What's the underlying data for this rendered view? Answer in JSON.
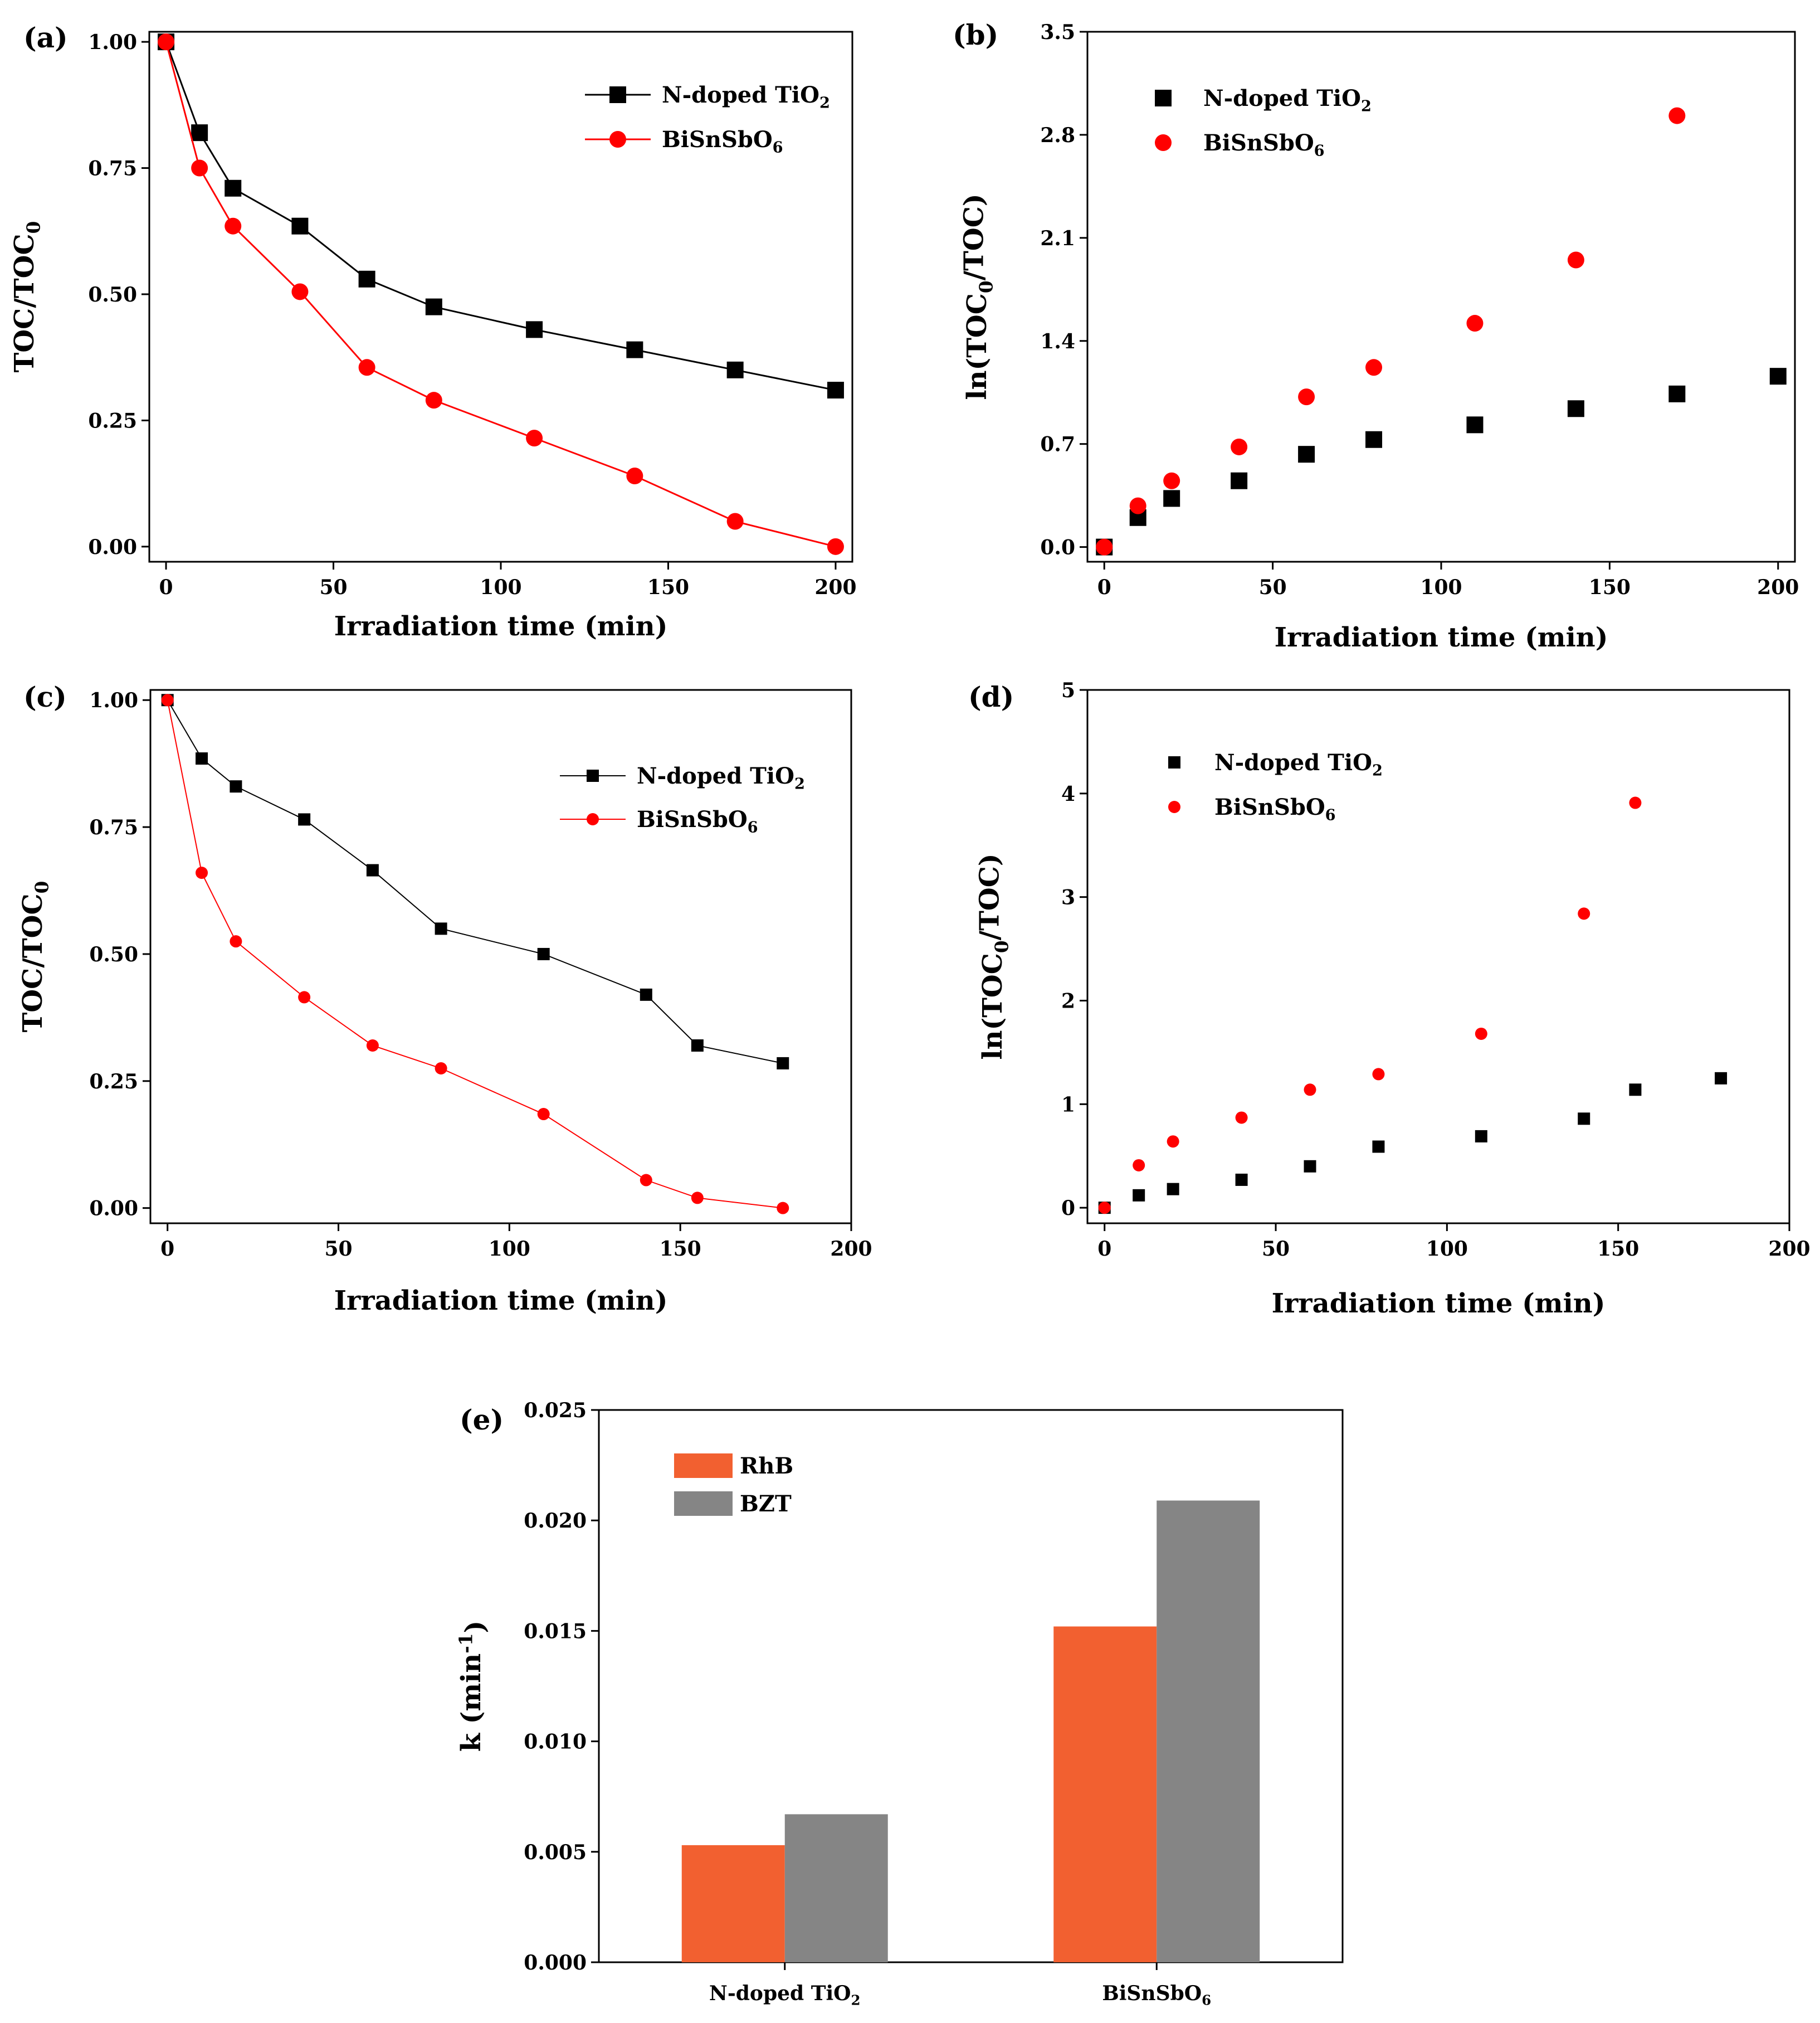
{
  "chart_data": [
    {
      "panel": "(a)",
      "type": "line",
      "xlabel": "Irradiation time (min)",
      "ylabel": "TOC/TOC0",
      "xlim": [
        -5,
        205
      ],
      "ylim": [
        -0.03,
        1.02
      ],
      "xticks": [
        0,
        50,
        100,
        150,
        200
      ],
      "yticks": [
        "0.00",
        "0.25",
        "0.50",
        "0.75",
        "1.00"
      ],
      "legend_position": "top-right",
      "series": [
        {
          "name": "N-doped TiO2",
          "color": "#000000",
          "marker": "square",
          "x": [
            0,
            10,
            20,
            40,
            60,
            80,
            110,
            140,
            170,
            200
          ],
          "y": [
            1.0,
            0.82,
            0.71,
            0.635,
            0.53,
            0.475,
            0.43,
            0.39,
            0.35,
            0.31
          ]
        },
        {
          "name": "BiSnSbO6",
          "color": "#ff0000",
          "marker": "circle",
          "x": [
            0,
            10,
            20,
            40,
            60,
            80,
            110,
            140,
            170,
            200
          ],
          "y": [
            1.0,
            0.75,
            0.635,
            0.505,
            0.355,
            0.29,
            0.215,
            0.14,
            0.05,
            0.0
          ]
        }
      ]
    },
    {
      "panel": "(b)",
      "type": "scatter",
      "xlabel": "Irradiation time (min)",
      "ylabel": "ln(TOC0/TOC)",
      "xlim": [
        -5,
        205
      ],
      "ylim": [
        -0.1,
        3.5
      ],
      "xticks": [
        0,
        50,
        100,
        150,
        200
      ],
      "yticks": [
        "0.0",
        "0.7",
        "1.4",
        "2.1",
        "2.8",
        "3.5"
      ],
      "legend_position": "top-left",
      "series": [
        {
          "name": "N-doped TiO2",
          "color": "#000000",
          "marker": "square",
          "x": [
            0,
            10,
            20,
            40,
            60,
            80,
            110,
            140,
            170,
            200
          ],
          "y": [
            0.0,
            0.2,
            0.33,
            0.45,
            0.63,
            0.73,
            0.83,
            0.94,
            1.04,
            1.16
          ]
        },
        {
          "name": "BiSnSbO6",
          "color": "#ff0000",
          "marker": "circle",
          "x": [
            0,
            10,
            20,
            40,
            60,
            80,
            110,
            140,
            170
          ],
          "y": [
            0.0,
            0.28,
            0.45,
            0.68,
            1.02,
            1.22,
            1.52,
            1.95,
            2.93
          ]
        }
      ]
    },
    {
      "panel": "(c)",
      "type": "line",
      "xlabel": "Irradiation time (min)",
      "ylabel": "TOC/TOC0",
      "xlim": [
        -5,
        200
      ],
      "ylim": [
        -0.03,
        1.02
      ],
      "xticks": [
        0,
        50,
        100,
        150,
        200
      ],
      "yticks": [
        "0.00",
        "0.25",
        "0.50",
        "0.75",
        "1.00"
      ],
      "legend_position": "top-right",
      "series": [
        {
          "name": "N-doped TiO2",
          "color": "#000000",
          "marker": "square",
          "x": [
            0,
            10,
            20,
            40,
            60,
            80,
            110,
            140,
            155,
            180
          ],
          "y": [
            1.0,
            0.885,
            0.83,
            0.765,
            0.665,
            0.55,
            0.5,
            0.42,
            0.32,
            0.285
          ]
        },
        {
          "name": "BiSnSbO6",
          "color": "#ff0000",
          "marker": "circle",
          "x": [
            0,
            10,
            20,
            40,
            60,
            80,
            110,
            140,
            155,
            180
          ],
          "y": [
            1.0,
            0.66,
            0.525,
            0.415,
            0.32,
            0.275,
            0.185,
            0.055,
            0.02,
            0.0
          ]
        }
      ]
    },
    {
      "panel": "(d)",
      "type": "scatter",
      "xlabel": "Irradiation time (min)",
      "ylabel": "ln(TOC0/TOC)",
      "xlim": [
        -5,
        200
      ],
      "ylim": [
        -0.15,
        5
      ],
      "xticks": [
        0,
        50,
        100,
        150,
        200
      ],
      "yticks": [
        "0",
        "1",
        "2",
        "3",
        "4",
        "5"
      ],
      "legend_position": "top-left",
      "series": [
        {
          "name": "N-doped TiO2",
          "color": "#000000",
          "marker": "square",
          "x": [
            0,
            10,
            20,
            40,
            60,
            80,
            110,
            140,
            155,
            180
          ],
          "y": [
            0.0,
            0.12,
            0.18,
            0.27,
            0.4,
            0.59,
            0.69,
            0.86,
            1.14,
            1.25
          ]
        },
        {
          "name": "BiSnSbO6",
          "color": "#ff0000",
          "marker": "circle",
          "x": [
            0,
            10,
            20,
            40,
            60,
            80,
            110,
            140,
            155
          ],
          "y": [
            0.0,
            0.41,
            0.64,
            0.87,
            1.14,
            1.29,
            1.68,
            2.84,
            3.91
          ]
        }
      ]
    },
    {
      "panel": "(e)",
      "type": "bar",
      "xlabel": "",
      "ylabel": "k (min-1)",
      "ylim": [
        0,
        0.025
      ],
      "yticks": [
        "0.000",
        "0.005",
        "0.010",
        "0.015",
        "0.020",
        "0.025"
      ],
      "categories": [
        "N-doped TiO2",
        "BiSnSbO6"
      ],
      "legend_position": "top-left",
      "series": [
        {
          "name": "RhB",
          "color": "#f26030",
          "values": [
            0.0053,
            0.0152
          ]
        },
        {
          "name": "BZT",
          "color": "#858585",
          "values": [
            0.0067,
            0.0209
          ]
        }
      ]
    }
  ]
}
